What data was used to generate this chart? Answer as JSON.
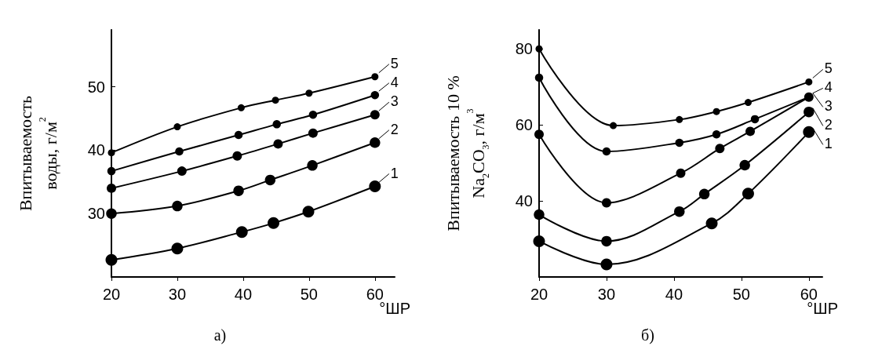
{
  "chart_data": [
    {
      "type": "line",
      "xlabel": "°ШР",
      "ylabel": "Впитываемость\nводы, г/м$^{2}$",
      "annotations": [
        "а)"
      ],
      "xlim": [
        20,
        63
      ],
      "xticks": [
        20,
        30,
        40,
        50,
        60
      ],
      "ylim": [
        20,
        59
      ],
      "yticks": [
        30,
        40,
        50
      ],
      "grid": false,
      "legend": "right",
      "marker": "circle",
      "line_style": "solid",
      "series": [
        {
          "name": "1",
          "color": "#000000",
          "x": [
            20,
            30,
            39.8,
            44.6,
            49.9,
            60
          ],
          "values": [
            22.7,
            24.5,
            27.1,
            28.5,
            30.3,
            34.3
          ]
        },
        {
          "name": "2",
          "color": "#000000",
          "x": [
            20,
            30,
            39.3,
            44.1,
            50.5,
            60
          ],
          "values": [
            30.0,
            31.2,
            33.6,
            35.3,
            37.6,
            41.2
          ]
        },
        {
          "name": "3",
          "color": "#000000",
          "x": [
            20,
            30.7,
            39.1,
            45.3,
            50.6,
            60
          ],
          "values": [
            34.0,
            36.7,
            39.1,
            41.0,
            42.7,
            45.6
          ]
        },
        {
          "name": "4",
          "color": "#000000",
          "x": [
            20,
            30.3,
            39.3,
            45.1,
            50.6,
            60
          ],
          "values": [
            36.7,
            39.8,
            42.4,
            44.1,
            45.6,
            48.7
          ]
        },
        {
          "name": "5",
          "color": "#000000",
          "x": [
            20,
            30,
            39.7,
            44.9,
            50.0,
            60
          ],
          "values": [
            39.6,
            43.7,
            46.7,
            47.9,
            49.0,
            51.6
          ]
        }
      ]
    },
    {
      "type": "line",
      "xlabel": "°ШР",
      "ylabel": "Впитываемость 10 %\nNa$_{2}$CO$_{3}$, г/м$^{3}$",
      "annotations": [
        "б)"
      ],
      "xlim": [
        20,
        62
      ],
      "xticks": [
        20,
        30,
        40,
        50,
        60
      ],
      "ylim": [
        20,
        85
      ],
      "yticks": [
        40,
        60,
        80
      ],
      "grid": false,
      "legend": "right",
      "marker": "circle",
      "line_style": "solid",
      "series": [
        {
          "name": "1",
          "color": "#000000",
          "x": [
            20,
            30,
            45.6,
            51,
            60
          ],
          "values": [
            29.4,
            23.3,
            34.1,
            41.9,
            58.1
          ]
        },
        {
          "name": "2",
          "color": "#000000",
          "x": [
            20,
            30,
            40.8,
            44.5,
            50.5,
            60
          ],
          "values": [
            36.4,
            29.4,
            37.2,
            41.8,
            49.4,
            63.4
          ]
        },
        {
          "name": "3",
          "color": "#000000",
          "x": [
            20,
            30,
            41,
            46.8,
            51.3,
            60
          ],
          "values": [
            57.5,
            39.5,
            47.3,
            53.8,
            58.3,
            67.3
          ]
        },
        {
          "name": "4",
          "color": "#000000",
          "x": [
            20,
            30,
            40.8,
            46.3,
            52,
            60
          ],
          "values": [
            72.4,
            53.0,
            55.3,
            57.5,
            61.5,
            67.3
          ]
        },
        {
          "name": "5",
          "color": "#000000",
          "x": [
            20,
            31,
            40.8,
            46.3,
            51,
            60
          ],
          "values": [
            80,
            59.8,
            61.4,
            63.5,
            65.9,
            71.3
          ]
        }
      ]
    }
  ]
}
